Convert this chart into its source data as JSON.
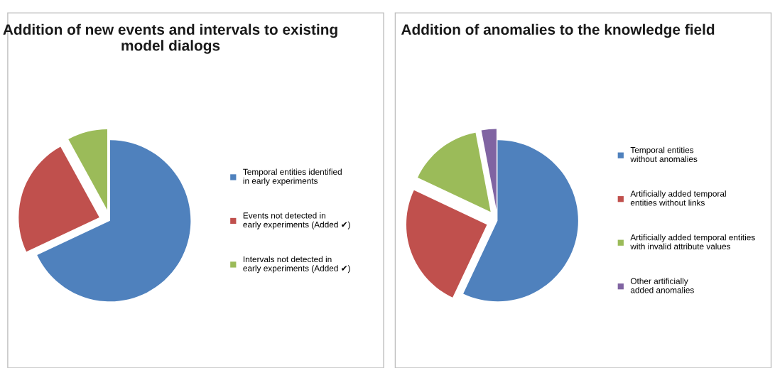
{
  "chart_data": [
    {
      "type": "pie",
      "title": "Addition of new events and intervals to existing model dialogs",
      "categories": [
        "Temporal entities identified in early experiments",
        "Events not detected in early experiments (Added ✔)",
        "Intervals not detected in early experiments (Added ✔)"
      ],
      "values": [
        68,
        24,
        8
      ],
      "colors": [
        "#4f81bd",
        "#c0504d",
        "#9bbb59"
      ],
      "legend": "right"
    },
    {
      "type": "pie",
      "title": "Addition of anomalies to the knowledge field",
      "categories": [
        "Temporal entities without anomalies",
        "Artificially added temporal entities without links",
        "Artificially added temporal entities with invalid attribute values",
        "Other artificially added anomalies"
      ],
      "values": [
        57,
        25,
        15,
        3
      ],
      "colors": [
        "#4f81bd",
        "#c0504d",
        "#9bbb59",
        "#8064a2"
      ],
      "legend": "right"
    }
  ]
}
